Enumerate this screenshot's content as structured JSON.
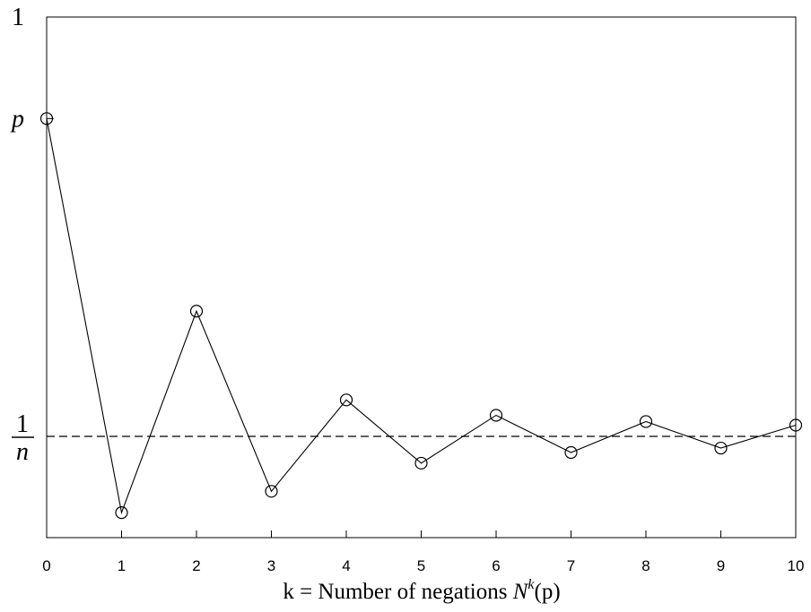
{
  "chart_data": {
    "type": "line",
    "xlabel": "k = Number of negations N^k(p)",
    "xlabel_parts": {
      "prefix": "k = Number of negations ",
      "func": "N",
      "sup": "k",
      "arg": "(p)"
    },
    "x": [
      0,
      1,
      2,
      3,
      4,
      5,
      6,
      7,
      8,
      9,
      10
    ],
    "xticks": [
      "0",
      "1",
      "2",
      "3",
      "4",
      "5",
      "6",
      "7",
      "8",
      "9",
      "10"
    ],
    "xlim": [
      0,
      10
    ],
    "ylim": [
      0,
      1
    ],
    "yticks": [
      {
        "value": 1,
        "label": "1"
      },
      {
        "value": 0.805,
        "label": "p"
      },
      {
        "value": 0.1945,
        "label_num": "1",
        "label_den": "n"
      }
    ],
    "series": [
      {
        "values": [
          0.805,
          0.048,
          0.435,
          0.089,
          0.2645,
          0.143,
          0.235,
          0.1635,
          0.223,
          0.172,
          0.216
        ],
        "marker": "circle",
        "color": "#000000"
      }
    ],
    "reference_line": {
      "y": 0.1945,
      "style": "dashed"
    },
    "grid": false,
    "legend": "none"
  }
}
